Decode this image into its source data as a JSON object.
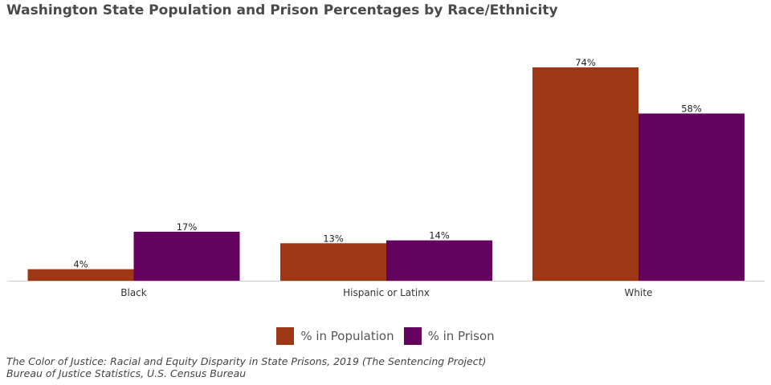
{
  "title": "Washington State Population and Prison Percentages by Race/Ethnicity",
  "chart_data": {
    "type": "bar",
    "categories": [
      "Black",
      "Hispanic or Latinx",
      "White"
    ],
    "series": [
      {
        "name": "% in Population",
        "values": [
          4,
          13,
          74
        ],
        "labels": [
          "4%",
          "13%",
          "74%"
        ],
        "color": "#9e3814"
      },
      {
        "name": "% in Prison",
        "values": [
          17,
          14,
          58
        ],
        "labels": [
          "17%",
          "14%",
          "58%"
        ],
        "color": "#63035e"
      }
    ],
    "ylim": [
      0,
      80
    ],
    "grid": false,
    "legend": "bottom-center"
  },
  "source": {
    "line1": "The Color of Justice: Racial and Equity Disparity in State Prisons, 2019 (The Sentencing Project)",
    "line2": "Bureau of Justice Statistics, U.S. Census Bureau"
  }
}
